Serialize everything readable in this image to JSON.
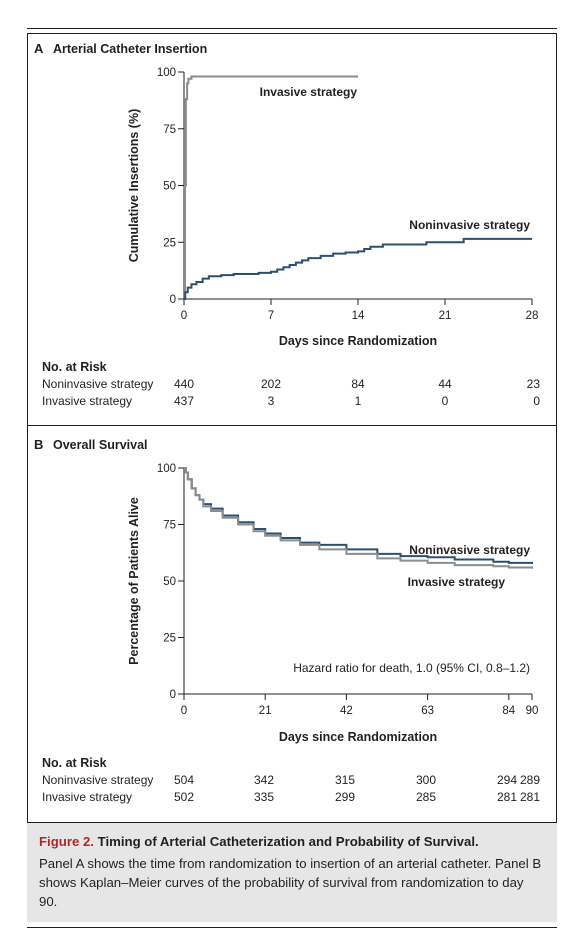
{
  "chart_data": [
    {
      "type": "line",
      "panel_label": "A",
      "title": "Arterial Catheter Insertion",
      "xlabel": "Days since Randomization",
      "ylabel": "Cumulative Insertions (%)",
      "xlim": [
        0,
        28
      ],
      "ylim": [
        0,
        100
      ],
      "xticks": [
        0,
        7,
        14,
        21,
        28
      ],
      "yticks": [
        0,
        25,
        50,
        75,
        100
      ],
      "curve_labels": {
        "Invasive strategy": "Invasive strategy",
        "Noninvasive strategy": "Noninvasive strategy"
      },
      "series": [
        {
          "name": "Invasive strategy",
          "color": "#8a8c8e",
          "step": true,
          "points": [
            [
              0,
              0
            ],
            [
              0.08,
              50
            ],
            [
              0.15,
              88
            ],
            [
              0.25,
              95
            ],
            [
              0.35,
              97
            ],
            [
              0.6,
              98
            ],
            [
              14,
              98
            ]
          ]
        },
        {
          "name": "Noninvasive strategy",
          "color": "#2e506f",
          "step": true,
          "points": [
            [
              0,
              0
            ],
            [
              0.1,
              3
            ],
            [
              0.3,
              5
            ],
            [
              0.6,
              6.5
            ],
            [
              1,
              7.5
            ],
            [
              1.5,
              9
            ],
            [
              2,
              10
            ],
            [
              3,
              10.5
            ],
            [
              4,
              11
            ],
            [
              5,
              11
            ],
            [
              6,
              11.5
            ],
            [
              7,
              12
            ],
            [
              7.5,
              13
            ],
            [
              8,
              14
            ],
            [
              8.5,
              15
            ],
            [
              9,
              16
            ],
            [
              9.5,
              17
            ],
            [
              10,
              18
            ],
            [
              11,
              19
            ],
            [
              12,
              20
            ],
            [
              13,
              20.5
            ],
            [
              14,
              21
            ],
            [
              14.5,
              22
            ],
            [
              15,
              23
            ],
            [
              16,
              24
            ],
            [
              19,
              24
            ],
            [
              19.5,
              25
            ],
            [
              22,
              25
            ],
            [
              22.5,
              26.5
            ],
            [
              28,
              26.5
            ]
          ]
        }
      ],
      "no_at_risk": {
        "header": "No. at Risk",
        "rows": [
          {
            "label": "Noninvasive strategy",
            "values": [
              "440",
              "202",
              "84",
              "44",
              "23"
            ]
          },
          {
            "label": "Invasive strategy",
            "values": [
              "437",
              "3",
              "1",
              "0",
              "0"
            ]
          }
        ]
      }
    },
    {
      "type": "line",
      "panel_label": "B",
      "title": "Overall Survival",
      "xlabel": "Days since Randomization",
      "ylabel": "Percentage of Patients Alive",
      "xlim": [
        0,
        90
      ],
      "ylim": [
        0,
        100
      ],
      "xticks": [
        0,
        21,
        42,
        63,
        84,
        90
      ],
      "yticks": [
        0,
        25,
        50,
        75,
        100
      ],
      "annotation": "Hazard ratio for death, 1.0 (95% CI, 0.8–1.2)",
      "curve_labels": {
        "Noninvasive strategy": "Noninvasive strategy",
        "Invasive strategy": "Invasive strategy"
      },
      "series": [
        {
          "name": "Noninvasive strategy",
          "color": "#2e506f",
          "step": true,
          "points": [
            [
              0,
              100
            ],
            [
              0.5,
              98
            ],
            [
              1,
              95
            ],
            [
              2,
              91
            ],
            [
              3,
              88
            ],
            [
              4,
              86
            ],
            [
              5,
              84
            ],
            [
              7,
              82
            ],
            [
              10,
              79
            ],
            [
              14,
              76
            ],
            [
              18,
              73
            ],
            [
              21,
              71
            ],
            [
              25,
              69
            ],
            [
              30,
              67
            ],
            [
              35,
              66
            ],
            [
              42,
              64
            ],
            [
              50,
              62
            ],
            [
              56,
              61
            ],
            [
              63,
              60.5
            ],
            [
              70,
              59.5
            ],
            [
              80,
              58.5
            ],
            [
              84,
              58
            ],
            [
              90,
              57.5
            ]
          ]
        },
        {
          "name": "Invasive strategy",
          "color": "#8a8c8e",
          "step": true,
          "points": [
            [
              0,
              100
            ],
            [
              0.5,
              98
            ],
            [
              1,
              95
            ],
            [
              2,
              91
            ],
            [
              3,
              88
            ],
            [
              4,
              86
            ],
            [
              5,
              83
            ],
            [
              7,
              81
            ],
            [
              10,
              78
            ],
            [
              14,
              75
            ],
            [
              18,
              72
            ],
            [
              21,
              70
            ],
            [
              25,
              68
            ],
            [
              30,
              66
            ],
            [
              35,
              64
            ],
            [
              42,
              62
            ],
            [
              50,
              60
            ],
            [
              56,
              59
            ],
            [
              63,
              58
            ],
            [
              70,
              57
            ],
            [
              80,
              56.5
            ],
            [
              84,
              56
            ],
            [
              90,
              55.5
            ]
          ]
        }
      ],
      "no_at_risk": {
        "header": "No. at Risk",
        "rows": [
          {
            "label": "Noninvasive strategy",
            "values": [
              "504",
              "342",
              "315",
              "300",
              "294",
              "289"
            ]
          },
          {
            "label": "Invasive strategy",
            "values": [
              "502",
              "335",
              "299",
              "285",
              "281",
              "281"
            ]
          }
        ]
      }
    }
  ],
  "caption": {
    "label": "Figure 2.",
    "title": "Timing of Arterial Catheterization and Probability of Survival.",
    "body": "Panel A shows the time from randomization to insertion of an arterial catheter. Panel B shows Kaplan–Meier curves of the probability of survival from randomization to day 90."
  }
}
